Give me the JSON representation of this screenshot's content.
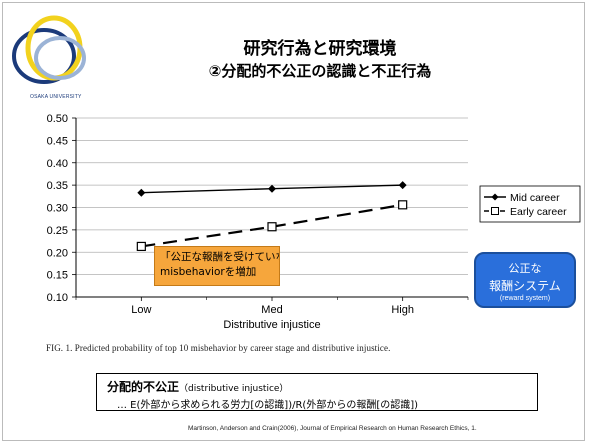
{
  "university": "OSAKA UNIVERSITY",
  "title_line1": "研究行為と研究環境",
  "title_line2": "②分配的不公正の認識と不正行為",
  "callout": {
    "line1": "「公正な報酬を受けていない」という認識が",
    "line2": "misbehaviorを増加"
  },
  "reward_box": {
    "line1": "公正な",
    "line2": "報酬システム",
    "line3": "(reward system)"
  },
  "caption": "FIG. 1.  Predicted probability of top 10 misbehavior by career stage and distributive injustice.",
  "definition": {
    "term": "分配的不公正",
    "term_en": "（distributive injustice）",
    "formula": "… E(外部から求められる労力[の認識])/R(外部からの報酬[の認識])"
  },
  "citation": "Martinson, Anderson and Crain(2006), Journal of Empirical Research on Human Research Ethics, 1.",
  "colors": {
    "reward_box": "#2a6fdb",
    "callout": "#f6a63c"
  },
  "chart_data": {
    "type": "line",
    "categories": [
      "Low",
      "Med",
      "High"
    ],
    "xlabel": "Distributive injustice",
    "ylabel": "",
    "ylim": [
      0.1,
      0.5
    ],
    "yticks": [
      "0.10",
      "0.15",
      "0.20",
      "0.25",
      "0.30",
      "0.35",
      "0.40",
      "0.45",
      "0.50"
    ],
    "grid": true,
    "legend_position": "right",
    "series": [
      {
        "name": "Mid career",
        "values": [
          0.333,
          0.342,
          0.35
        ],
        "marker": "diamond",
        "line": "solid"
      },
      {
        "name": "Early career",
        "values": [
          0.213,
          0.257,
          0.306
        ],
        "marker": "square",
        "line": "dashed"
      }
    ]
  }
}
